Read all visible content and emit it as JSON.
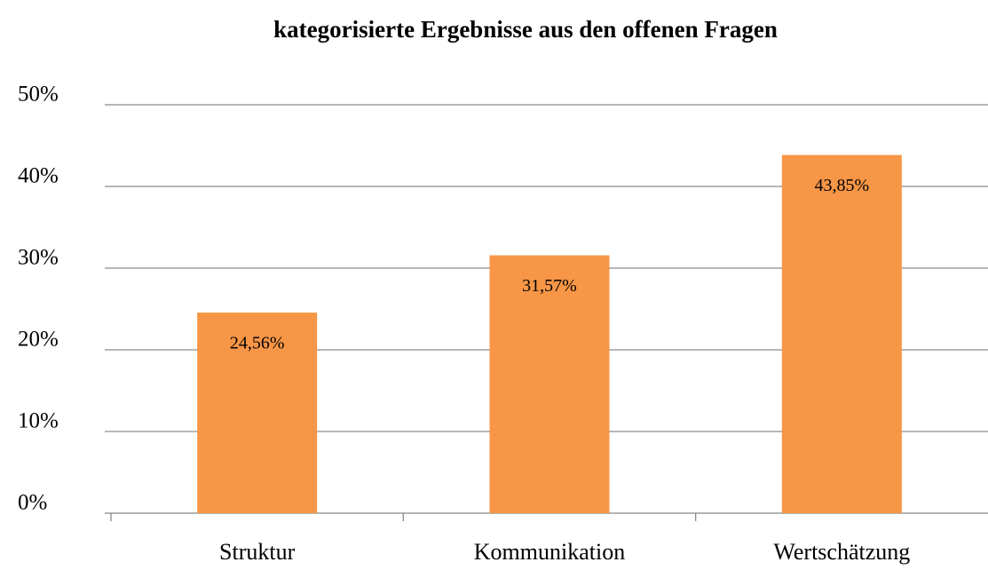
{
  "chart_data": {
    "type": "bar",
    "title": "kategorisierte Ergebnisse aus den offenen Fragen",
    "categories": [
      "Struktur",
      "Kommunikation",
      "Wertschätzung"
    ],
    "values": [
      24.56,
      31.57,
      43.85
    ],
    "value_labels": [
      "24,56%",
      "31,57%",
      "43,85%"
    ],
    "color": "#f79646",
    "ylim": [
      0,
      50
    ],
    "yticks": [
      {
        "value": 0,
        "label": "0%"
      },
      {
        "value": 10,
        "label": "10%"
      },
      {
        "value": 20,
        "label": "20%"
      },
      {
        "value": 30,
        "label": "30%"
      },
      {
        "value": 40,
        "label": "40%"
      },
      {
        "value": 50,
        "label": "50%"
      }
    ],
    "grid": true
  }
}
